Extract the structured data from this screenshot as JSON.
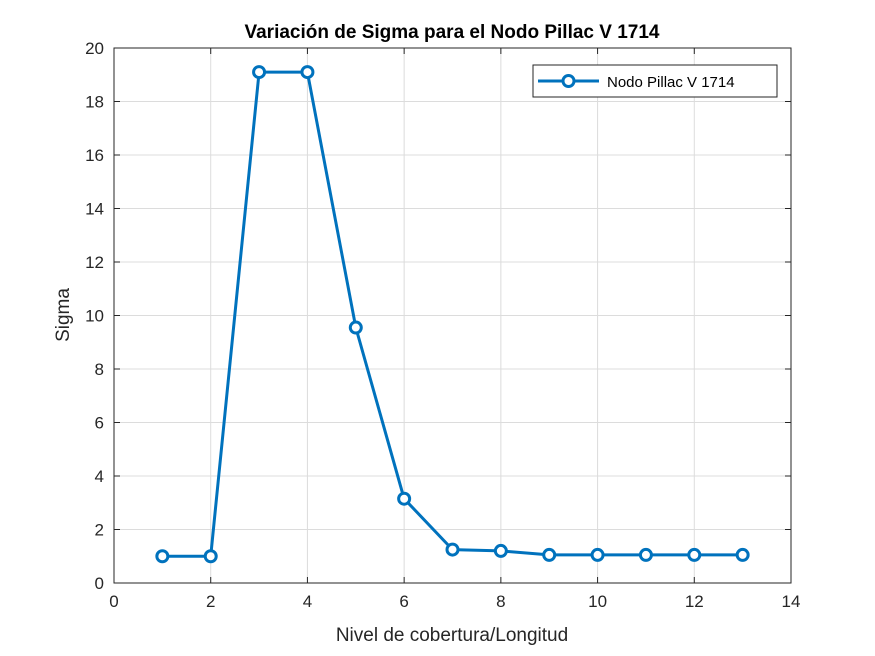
{
  "chart_data": {
    "type": "line",
    "title": "Variación de Sigma para el Nodo Pillac V 1714",
    "xlabel": "Nivel de cobertura/Longitud",
    "ylabel": "Sigma",
    "xlim": [
      0,
      14
    ],
    "ylim": [
      0,
      20
    ],
    "xticks": [
      "0",
      "2",
      "4",
      "6",
      "8",
      "10",
      "12",
      "14"
    ],
    "yticks": [
      "0",
      "2",
      "4",
      "6",
      "8",
      "10",
      "12",
      "14",
      "16",
      "18",
      "20"
    ],
    "grid": true,
    "legend_position": "top-right",
    "series": [
      {
        "name": "Nodo Pillac V 1714",
        "color": "#0072BD",
        "marker": "circle",
        "x": [
          1,
          2,
          3,
          4,
          5,
          6,
          7,
          8,
          9,
          10,
          11,
          12,
          13
        ],
        "y": [
          1.0,
          1.0,
          19.1,
          19.1,
          9.55,
          3.15,
          1.25,
          1.2,
          1.05,
          1.05,
          1.05,
          1.05,
          1.05
        ]
      }
    ]
  }
}
